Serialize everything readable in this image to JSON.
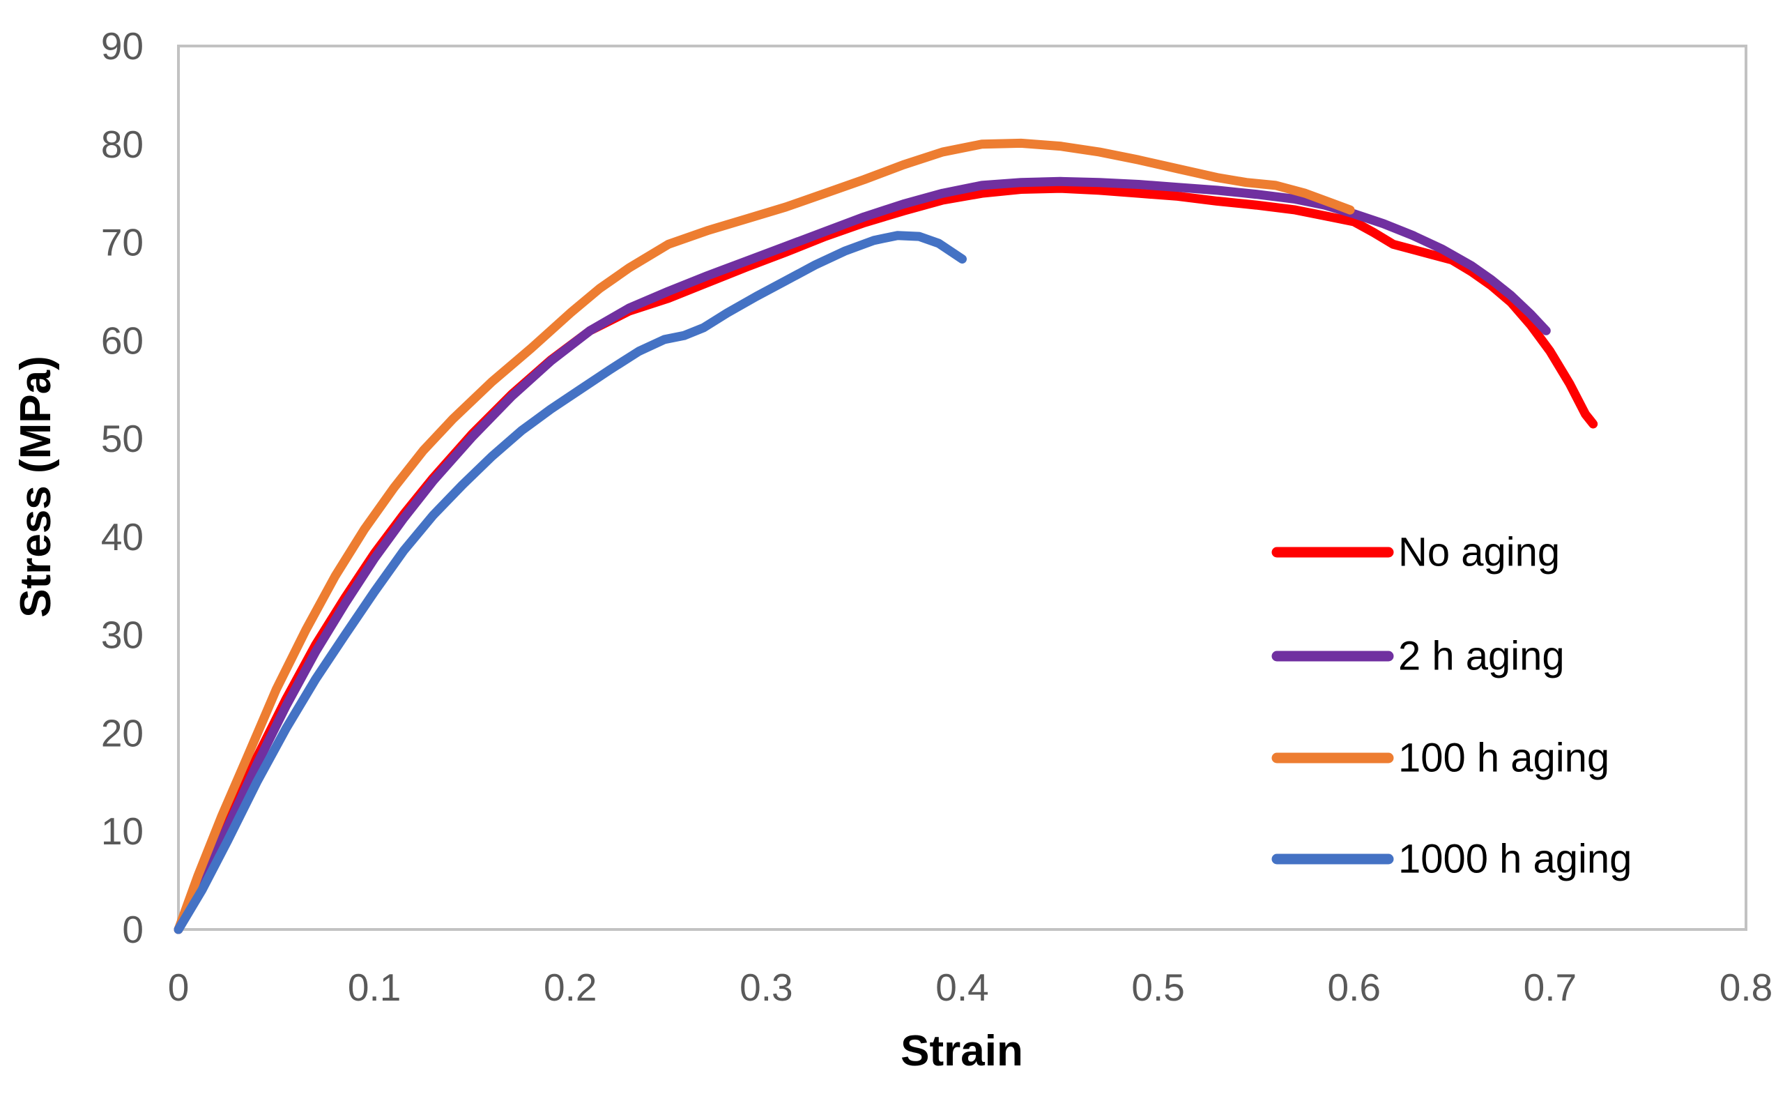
{
  "axes": {
    "line_color": "#c2c2c2",
    "tick_label_color": "#595959",
    "title_color": "#000000"
  },
  "legend": {
    "position": "right-middle",
    "items": [
      "No aging",
      "2 h aging",
      "100 h aging",
      "1000 h aging"
    ]
  },
  "chart_data": {
    "type": "line",
    "title": "",
    "xlabel": "Strain",
    "ylabel": "Stress (MPa)",
    "xlim": [
      0,
      0.8
    ],
    "ylim": [
      0,
      90
    ],
    "grid": false,
    "x_ticks": [
      "0",
      "0.1",
      "0.2",
      "0.3",
      "0.4",
      "0.5",
      "0.6",
      "0.7",
      "0.8"
    ],
    "y_ticks": [
      "0",
      "10",
      "20",
      "30",
      "40",
      "50",
      "60",
      "70",
      "80",
      "90"
    ],
    "legend_position": "right-middle",
    "series": [
      {
        "name": "No aging",
        "color": "#ff0000",
        "points": [
          [
            0,
            0
          ],
          [
            0.012,
            5
          ],
          [
            0.025,
            11
          ],
          [
            0.04,
            17.5
          ],
          [
            0.055,
            23.5
          ],
          [
            0.07,
            29
          ],
          [
            0.085,
            33.8
          ],
          [
            0.1,
            38.3
          ],
          [
            0.115,
            42.3
          ],
          [
            0.13,
            46
          ],
          [
            0.15,
            50.5
          ],
          [
            0.17,
            54.5
          ],
          [
            0.19,
            58
          ],
          [
            0.21,
            61
          ],
          [
            0.23,
            63
          ],
          [
            0.25,
            64.3
          ],
          [
            0.27,
            65.9
          ],
          [
            0.29,
            67.5
          ],
          [
            0.31,
            69
          ],
          [
            0.33,
            70.6
          ],
          [
            0.35,
            72
          ],
          [
            0.37,
            73.2
          ],
          [
            0.39,
            74.3
          ],
          [
            0.41,
            75
          ],
          [
            0.43,
            75.4
          ],
          [
            0.45,
            75.5
          ],
          [
            0.47,
            75.3
          ],
          [
            0.49,
            75
          ],
          [
            0.51,
            74.7
          ],
          [
            0.53,
            74.2
          ],
          [
            0.55,
            73.8
          ],
          [
            0.57,
            73.3
          ],
          [
            0.585,
            72.7
          ],
          [
            0.6,
            72.1
          ],
          [
            0.61,
            71
          ],
          [
            0.62,
            69.8
          ],
          [
            0.635,
            69
          ],
          [
            0.65,
            68.2
          ],
          [
            0.66,
            67
          ],
          [
            0.67,
            65.6
          ],
          [
            0.68,
            63.9
          ],
          [
            0.69,
            61.6
          ],
          [
            0.7,
            58.9
          ],
          [
            0.71,
            55.6
          ],
          [
            0.718,
            52.5
          ],
          [
            0.722,
            51.5
          ]
        ]
      },
      {
        "name": "2 h aging",
        "color": "#7030a0",
        "points": [
          [
            0,
            0
          ],
          [
            0.012,
            4.6
          ],
          [
            0.025,
            10.4
          ],
          [
            0.04,
            16.8
          ],
          [
            0.055,
            22.8
          ],
          [
            0.07,
            28.3
          ],
          [
            0.085,
            33.2
          ],
          [
            0.1,
            37.8
          ],
          [
            0.115,
            41.9
          ],
          [
            0.13,
            45.7
          ],
          [
            0.15,
            50.2
          ],
          [
            0.17,
            54.3
          ],
          [
            0.19,
            57.9
          ],
          [
            0.21,
            61
          ],
          [
            0.23,
            63.3
          ],
          [
            0.25,
            65
          ],
          [
            0.27,
            66.6
          ],
          [
            0.29,
            68.1
          ],
          [
            0.31,
            69.6
          ],
          [
            0.33,
            71.1
          ],
          [
            0.35,
            72.6
          ],
          [
            0.37,
            73.9
          ],
          [
            0.39,
            75
          ],
          [
            0.41,
            75.8
          ],
          [
            0.43,
            76.1
          ],
          [
            0.45,
            76.2
          ],
          [
            0.47,
            76.1
          ],
          [
            0.49,
            75.9
          ],
          [
            0.51,
            75.6
          ],
          [
            0.53,
            75.3
          ],
          [
            0.55,
            74.9
          ],
          [
            0.57,
            74.4
          ],
          [
            0.585,
            73.8
          ],
          [
            0.6,
            72.9
          ],
          [
            0.615,
            71.9
          ],
          [
            0.63,
            70.7
          ],
          [
            0.645,
            69.3
          ],
          [
            0.66,
            67.6
          ],
          [
            0.67,
            66.2
          ],
          [
            0.68,
            64.6
          ],
          [
            0.69,
            62.7
          ],
          [
            0.698,
            61
          ]
        ]
      },
      {
        "name": "100 h aging",
        "color": "#ed7d31",
        "points": [
          [
            0,
            0
          ],
          [
            0.01,
            5.5
          ],
          [
            0.022,
            11.5
          ],
          [
            0.035,
            17.5
          ],
          [
            0.05,
            24.5
          ],
          [
            0.065,
            30.5
          ],
          [
            0.08,
            36
          ],
          [
            0.095,
            40.8
          ],
          [
            0.11,
            45
          ],
          [
            0.125,
            48.8
          ],
          [
            0.14,
            52
          ],
          [
            0.16,
            55.8
          ],
          [
            0.18,
            59.2
          ],
          [
            0.2,
            62.8
          ],
          [
            0.215,
            65.3
          ],
          [
            0.23,
            67.4
          ],
          [
            0.25,
            69.8
          ],
          [
            0.27,
            71.2
          ],
          [
            0.29,
            72.4
          ],
          [
            0.31,
            73.6
          ],
          [
            0.33,
            75
          ],
          [
            0.35,
            76.4
          ],
          [
            0.37,
            77.9
          ],
          [
            0.39,
            79.2
          ],
          [
            0.41,
            80
          ],
          [
            0.43,
            80.1
          ],
          [
            0.45,
            79.8
          ],
          [
            0.47,
            79.2
          ],
          [
            0.49,
            78.4
          ],
          [
            0.51,
            77.5
          ],
          [
            0.53,
            76.6
          ],
          [
            0.545,
            76.1
          ],
          [
            0.56,
            75.8
          ],
          [
            0.575,
            75
          ],
          [
            0.59,
            73.9
          ],
          [
            0.598,
            73.3
          ]
        ]
      },
      {
        "name": "1000 h aging",
        "color": "#4472c4",
        "points": [
          [
            0,
            0
          ],
          [
            0.012,
            4
          ],
          [
            0.025,
            9
          ],
          [
            0.04,
            15
          ],
          [
            0.055,
            20.5
          ],
          [
            0.07,
            25.5
          ],
          [
            0.085,
            30
          ],
          [
            0.1,
            34.4
          ],
          [
            0.115,
            38.6
          ],
          [
            0.13,
            42.2
          ],
          [
            0.145,
            45.3
          ],
          [
            0.16,
            48.2
          ],
          [
            0.175,
            50.8
          ],
          [
            0.19,
            53
          ],
          [
            0.205,
            55
          ],
          [
            0.22,
            57
          ],
          [
            0.235,
            58.9
          ],
          [
            0.248,
            60.1
          ],
          [
            0.258,
            60.5
          ],
          [
            0.268,
            61.3
          ],
          [
            0.28,
            62.8
          ],
          [
            0.295,
            64.5
          ],
          [
            0.31,
            66.1
          ],
          [
            0.325,
            67.7
          ],
          [
            0.34,
            69.1
          ],
          [
            0.355,
            70.2
          ],
          [
            0.367,
            70.7
          ],
          [
            0.378,
            70.6
          ],
          [
            0.388,
            69.9
          ],
          [
            0.4,
            68.3
          ]
        ]
      }
    ]
  }
}
